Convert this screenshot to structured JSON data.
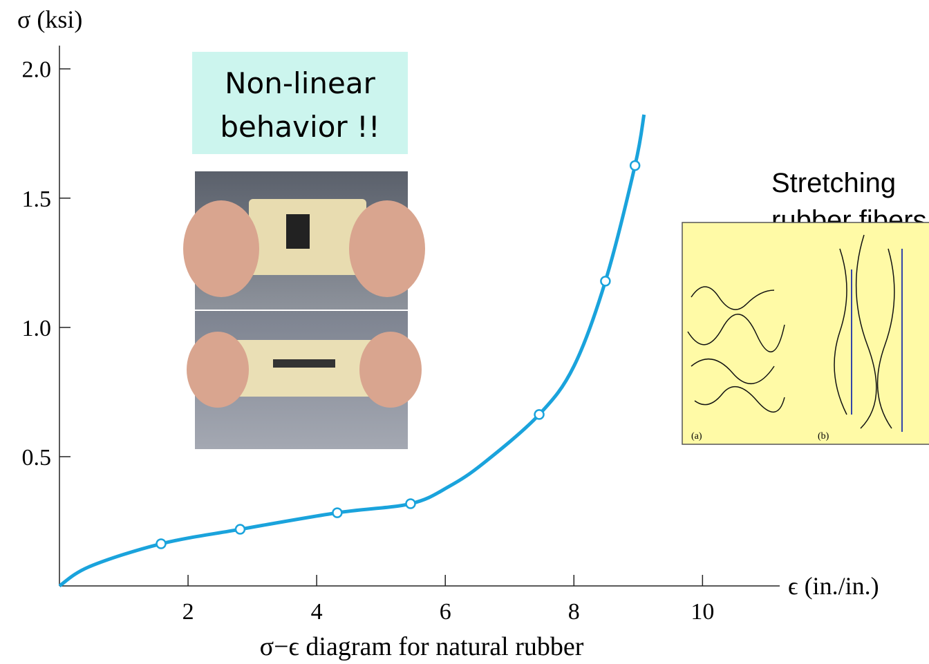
{
  "chart_data": {
    "type": "line",
    "ylabel": "σ (ksi)",
    "xlabel": "ϵ (in./in.)",
    "caption": "σ−ϵ diagram for natural rubber",
    "xlim": [
      0,
      11.2
    ],
    "ylim": [
      0,
      2.09
    ],
    "xticks": [
      2,
      4,
      6,
      8,
      10
    ],
    "yticks": [
      {
        "value": 0.5,
        "label": "0.5"
      },
      {
        "value": 1,
        "label": "1.0"
      },
      {
        "value": 1.5,
        "label": "1.5"
      },
      {
        "value": 2,
        "label": "2.0"
      }
    ],
    "series": [
      {
        "color": "#1aa3dc",
        "mode": "line",
        "x": [
          0,
          0.47,
          1.58,
          2.81,
          4.32,
          5.46,
          6.06,
          6.6,
          7.46,
          8.0,
          8.49,
          8.95,
          9.09
        ],
        "values": [
          0,
          0.075,
          0.163,
          0.219,
          0.283,
          0.318,
          0.385,
          0.476,
          0.663,
          0.85,
          1.179,
          1.626,
          1.823
        ]
      },
      {
        "color": "#1aa3dc",
        "mode": "markers",
        "x": [
          1.58,
          2.81,
          4.32,
          5.46,
          7.46,
          8.49,
          8.95
        ],
        "values": [
          0.163,
          0.219,
          0.283,
          0.318,
          0.663,
          1.179,
          1.626
        ]
      }
    ],
    "annotation_box": [
      "Non-linear",
      "behavior !!"
    ],
    "side_note": [
      "Stretching",
      "rubber fibers"
    ],
    "inset_labels": [
      "(a)",
      "(b)"
    ]
  }
}
